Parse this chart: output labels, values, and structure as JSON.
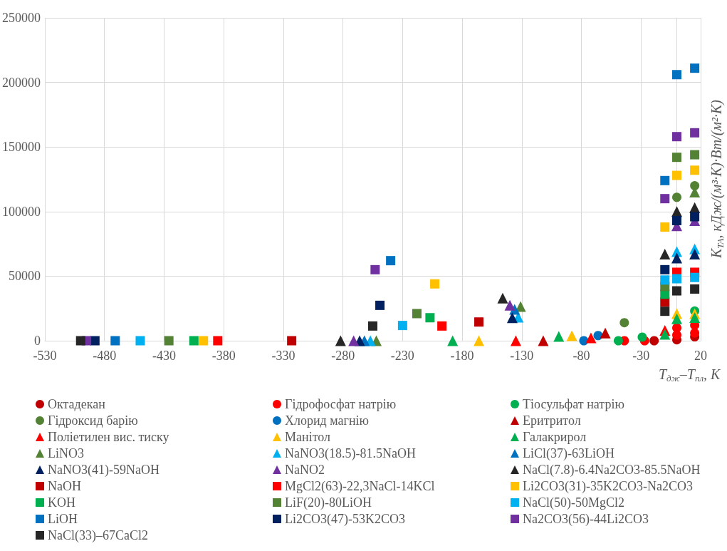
{
  "chart_data": {
    "type": "scatter",
    "xlabel": "T$_{дж}$–T$_{пл}$, К",
    "ylabel": "K$_{ТА}$, кДж/(м³·К)·Вт/(м²·К)",
    "xlim": [
      -530,
      20
    ],
    "xticks": [
      -530,
      -480,
      -430,
      -380,
      -330,
      -280,
      -230,
      -180,
      -130,
      -80,
      -30,
      20
    ],
    "ylim": [
      0,
      250000
    ],
    "yticks": [
      0,
      50000,
      100000,
      150000,
      200000,
      250000
    ],
    "grid": true,
    "legend": "bottom",
    "series": [
      {
        "name": "Октадекан",
        "color": "#c00000",
        "marker": "circle",
        "x": [
          -19,
          0,
          15
        ],
        "values": [
          0,
          700,
          3000
        ]
      },
      {
        "name": "Гідрофосфат натрію",
        "color": "#ff0000",
        "marker": "circle",
        "x": [
          -44,
          -27,
          0,
          0,
          15,
          15
        ],
        "values": [
          0,
          0,
          4400,
          10000,
          6000,
          12000
        ]
      },
      {
        "name": "Тіосульфат натрію",
        "color": "#00b050",
        "marker": "circle",
        "x": [
          -49,
          -29,
          15
        ],
        "values": [
          0,
          2800,
          23000
        ]
      },
      {
        "name": "Гідроксид барію",
        "color": "#548235",
        "marker": "circle",
        "x": [
          -44,
          0,
          15
        ],
        "values": [
          14000,
          111000,
          120000
        ]
      },
      {
        "name": "Хлорид магнію",
        "color": "#0070c0",
        "marker": "circle",
        "x": [
          -78,
          -66
        ],
        "values": [
          0,
          4000
        ]
      },
      {
        "name": "Еритритол",
        "color": "#c00000",
        "marker": "triangle",
        "x": [
          -112,
          -60
        ],
        "values": [
          0,
          6000
        ]
      },
      {
        "name": "Поліетилен вис. тиску",
        "color": "#ff0000",
        "marker": "triangle",
        "x": [
          -135,
          -72,
          -10
        ],
        "values": [
          0,
          2200,
          8000
        ]
      },
      {
        "name": "Манітол",
        "color": "#ffc000",
        "marker": "triangle",
        "x": [
          -166,
          -88,
          0,
          15
        ],
        "values": [
          0,
          3900,
          21000,
          21000
        ]
      },
      {
        "name": "Галакрирол",
        "color": "#00b050",
        "marker": "triangle",
        "x": [
          -188,
          -99,
          -10,
          0,
          15
        ],
        "values": [
          0,
          3300,
          5000,
          17000,
          18000
        ]
      },
      {
        "name": "LiNO3",
        "color": "#548235",
        "marker": "triangle",
        "x": [
          -252,
          -131,
          15
        ],
        "values": [
          0,
          26500,
          115000
        ]
      },
      {
        "name": "NaNO3(18.5)-81.5NaOH",
        "color": "#00b0f0",
        "marker": "triangle",
        "x": [
          -257,
          -133,
          0,
          15
        ],
        "values": [
          0,
          18200,
          69000,
          71000
        ]
      },
      {
        "name": "LiCl(37)-63LiOH",
        "color": "#0070c0",
        "marker": "triangle",
        "x": [
          -262,
          -136
        ],
        "values": [
          0,
          24300
        ]
      },
      {
        "name": "NaNO3(41)-59NaOH",
        "color": "#002060",
        "marker": "triangle",
        "x": [
          -266,
          -138,
          0,
          15
        ],
        "values": [
          0,
          17800,
          64000,
          67000
        ]
      },
      {
        "name": "NaNO2",
        "color": "#7030a0",
        "marker": "triangle",
        "x": [
          -271,
          -140,
          0,
          15
        ],
        "values": [
          0,
          27400,
          89000,
          93000
        ]
      },
      {
        "name": "NaCl(7.8)-6.4Na2CO3-85.5NaOH",
        "color": "#262626",
        "marker": "triangle",
        "x": [
          -282,
          -146,
          -10,
          0,
          15
        ],
        "values": [
          0,
          33000,
          67000,
          100000,
          103000
        ]
      },
      {
        "name": "NaOH",
        "color": "#c00000",
        "marker": "square",
        "x": [
          -323,
          -166,
          -10
        ],
        "values": [
          0,
          14500,
          30000
        ]
      },
      {
        "name": "MgCl2(63)-22,3NaCl-14KCl",
        "color": "#ff0000",
        "marker": "square",
        "x": [
          -385,
          -197,
          0,
          15
        ],
        "values": [
          0,
          11400,
          53000,
          53000
        ]
      },
      {
        "name": "Li2CO3(31)-35K2CO3-Na2CO3",
        "color": "#ffc000",
        "marker": "square",
        "x": [
          -397,
          -203,
          -10,
          0,
          15
        ],
        "values": [
          0,
          44000,
          88000,
          128000,
          132000
        ]
      },
      {
        "name": "KOH",
        "color": "#00b050",
        "marker": "square",
        "x": [
          -405,
          -207,
          -10
        ],
        "values": [
          0,
          17800,
          36000
        ]
      },
      {
        "name": "LiF(20)-80LiOH",
        "color": "#548235",
        "marker": "square",
        "x": [
          -426,
          -218,
          -10,
          0,
          15
        ],
        "values": [
          0,
          21000,
          42000,
          142000,
          144000
        ]
      },
      {
        "name": "NaCl(50)-50MgCl2",
        "color": "#00b0f0",
        "marker": "square",
        "x": [
          -450,
          -230,
          -10,
          0,
          15
        ],
        "values": [
          0,
          11800,
          47000,
          48000,
          49000
        ]
      },
      {
        "name": "LiOH",
        "color": "#0070c0",
        "marker": "square",
        "x": [
          -471,
          -240,
          -10,
          0,
          15
        ],
        "values": [
          0,
          62000,
          124000,
          206000,
          211000
        ]
      },
      {
        "name": "Li2CO3(47)-53K2CO3",
        "color": "#002060",
        "marker": "square",
        "x": [
          -488,
          -249,
          -10,
          0,
          15
        ],
        "values": [
          0,
          27400,
          55000,
          93000,
          96000
        ]
      },
      {
        "name": "Na2CO3(56)-44Li2CO3",
        "color": "#7030a0",
        "marker": "square",
        "x": [
          -495,
          -253,
          -10,
          0,
          15
        ],
        "values": [
          0,
          55000,
          110000,
          158000,
          161000
        ]
      },
      {
        "name": "NaCl(33)–67CaCl2",
        "color": "#262626",
        "marker": "square",
        "x": [
          -500,
          -255,
          -10,
          0,
          15
        ],
        "values": [
          0,
          11400,
          22800,
          38600,
          40000
        ]
      }
    ]
  }
}
